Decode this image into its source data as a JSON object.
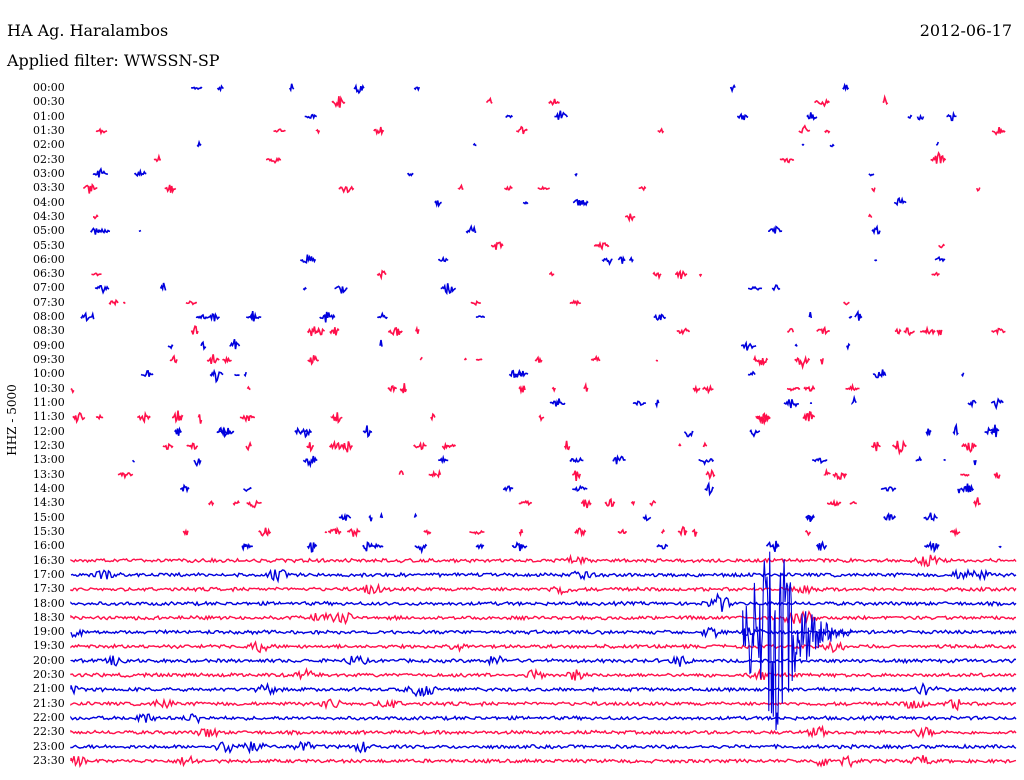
{
  "header": {
    "station": "HA Ag. Haralambos",
    "date": "2012-06-17",
    "filter": "Applied filter: WWSSN-SP"
  },
  "chart_data": {
    "type": "helicorder",
    "channel_label": "HHZ - 5000",
    "row_labels": [
      "00:00",
      "00:30",
      "01:00",
      "01:30",
      "02:00",
      "02:30",
      "03:00",
      "03:30",
      "04:00",
      "04:30",
      "05:00",
      "05:30",
      "06:00",
      "06:30",
      "07:00",
      "07:30",
      "08:00",
      "08:30",
      "09:00",
      "09:30",
      "10:00",
      "10:30",
      "11:00",
      "11:30",
      "12:00",
      "12:30",
      "13:00",
      "13:30",
      "14:00",
      "14:30",
      "15:00",
      "15:30",
      "16:00",
      "16:30",
      "17:00",
      "17:30",
      "18:00",
      "18:30",
      "19:00",
      "19:30",
      "20:00",
      "20:30",
      "21:00",
      "21:30",
      "22:00",
      "22:30",
      "23:00",
      "23:30"
    ],
    "row_minutes": 30,
    "colors": [
      "#0000dd",
      "#ff0f4a"
    ],
    "continuous_trace_from": "16:30",
    "major_event": {
      "row": "17:00",
      "x_fraction": 0.71
    }
  }
}
